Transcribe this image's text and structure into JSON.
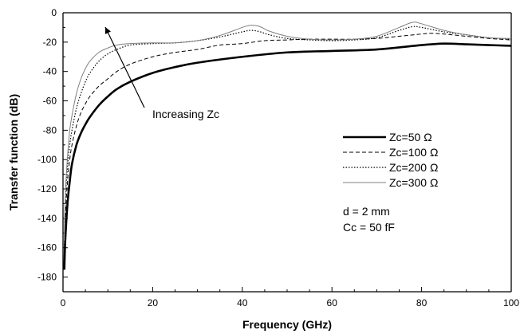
{
  "chart_data": {
    "type": "line",
    "xlabel": "Frequency (GHz)",
    "ylabel": "Transfer function (dB)",
    "xlim": [
      0,
      100
    ],
    "ylim": [
      -190,
      0
    ],
    "xticks": [
      0,
      20,
      40,
      60,
      80,
      100
    ],
    "yticks": [
      0,
      -20,
      -40,
      -60,
      -80,
      -100,
      -120,
      -140,
      -160,
      -180
    ],
    "grid": false,
    "legend_position": "center-right",
    "series": [
      {
        "name": "Zc=50 Ω",
        "style": "solid-thick",
        "color": "#000000",
        "x": [
          0.3,
          0.5,
          1,
          1.5,
          2,
          3,
          4,
          5,
          6,
          8,
          10,
          12,
          15,
          20,
          25,
          30,
          40,
          50,
          60,
          70,
          80,
          85,
          90,
          95,
          100
        ],
        "y": [
          -175,
          -155,
          -130,
          -115,
          -103,
          -90,
          -82,
          -76,
          -71,
          -63,
          -57,
          -52,
          -47,
          -41,
          -37,
          -34,
          -30,
          -27,
          -26,
          -25,
          -22,
          -21,
          -21.5,
          -22,
          -22.5
        ]
      },
      {
        "name": "Zc=100 Ω",
        "style": "dashed",
        "color": "#000000",
        "x": [
          0.3,
          0.5,
          1,
          1.5,
          2,
          3,
          4,
          5,
          6,
          8,
          10,
          12,
          15,
          20,
          25,
          30,
          35,
          40,
          45,
          50,
          55,
          60,
          65,
          70,
          75,
          80,
          82,
          85,
          90,
          95,
          100
        ],
        "y": [
          -165,
          -140,
          -115,
          -100,
          -90,
          -77,
          -68,
          -62,
          -57,
          -50,
          -45,
          -40,
          -35,
          -30,
          -27,
          -25,
          -22,
          -21,
          -19,
          -18.5,
          -18,
          -18,
          -18,
          -17.5,
          -16,
          -14.5,
          -14,
          -14.5,
          -16,
          -17.5,
          -18.5
        ]
      },
      {
        "name": "Zc=200 Ω",
        "style": "dotted",
        "color": "#000000",
        "x": [
          0.3,
          0.5,
          1,
          1.5,
          2,
          3,
          4,
          5,
          6,
          8,
          10,
          12,
          15,
          20,
          25,
          30,
          35,
          40,
          42,
          44,
          46,
          50,
          55,
          60,
          65,
          70,
          75,
          78,
          80,
          85,
          90,
          95,
          100
        ],
        "y": [
          -160,
          -130,
          -105,
          -90,
          -80,
          -65,
          -55,
          -47,
          -41,
          -33,
          -28,
          -25,
          -22,
          -21,
          -20.5,
          -19,
          -16.5,
          -13,
          -12,
          -13,
          -15,
          -17.5,
          -18.5,
          -19,
          -18.5,
          -17,
          -12,
          -9.5,
          -10,
          -13,
          -15,
          -17,
          -18
        ]
      },
      {
        "name": "Zc=300 Ω",
        "style": "thin",
        "color": "#808080",
        "x": [
          0.3,
          0.5,
          1,
          1.5,
          2,
          3,
          4,
          5,
          6,
          8,
          10,
          12,
          15,
          20,
          25,
          30,
          35,
          40,
          42,
          44,
          46,
          50,
          55,
          60,
          65,
          70,
          75,
          78,
          80,
          85,
          90,
          95,
          100
        ],
        "y": [
          -155,
          -125,
          -98,
          -80,
          -70,
          -55,
          -45,
          -38,
          -33,
          -27,
          -24,
          -22,
          -21,
          -20.5,
          -20.5,
          -19,
          -15.5,
          -10,
          -8.5,
          -9.5,
          -12.5,
          -16,
          -18,
          -18.5,
          -18,
          -16,
          -10,
          -6.5,
          -7.5,
          -12,
          -15,
          -17,
          -17.5
        ]
      }
    ],
    "annotations": [
      {
        "text": "Increasing Zc"
      },
      {
        "text": "d = 2 mm"
      },
      {
        "text": "Cc = 50 fF"
      }
    ]
  }
}
